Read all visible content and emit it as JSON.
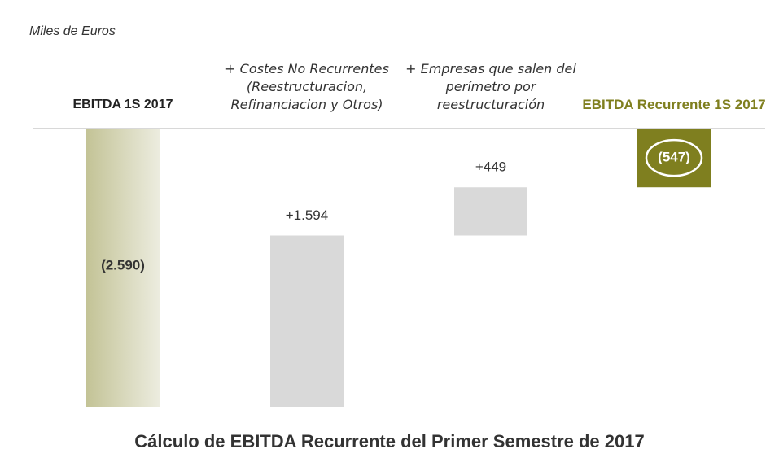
{
  "chart_data": {
    "type": "waterfall",
    "subtitle": "Miles de Euros",
    "title": "Cálculo de EBITDA Recurrente del Primer Semestre de 2017",
    "categories": [
      "EBITDA 1S 2017",
      "+ Costes No Recurrentes (Reestructuracion, Refinanciacion y Otros)",
      "+ Empresas que salen del perímetro por reestructuración",
      "EBITDA Recurrente 1S 2017"
    ],
    "values": [
      -2590,
      1594,
      449,
      -547
    ],
    "value_labels": [
      "(2.590)",
      "+1.594",
      "+449",
      "(547)"
    ],
    "colors": [
      "#c3c396",
      "#d9d9d9",
      "#d9d9d9",
      "#7f7f1f"
    ]
  }
}
